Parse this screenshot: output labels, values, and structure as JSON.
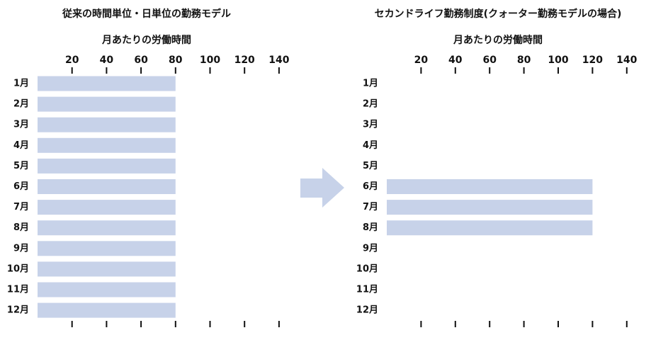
{
  "chart_data": [
    {
      "type": "bar",
      "orientation": "horizontal",
      "title": "従来の時間単位・日単位の勤務モデル",
      "subtitle": "月あたりの労働時間",
      "categories": [
        "1月",
        "2月",
        "3月",
        "4月",
        "5月",
        "6月",
        "7月",
        "8月",
        "9月",
        "10月",
        "11月",
        "12月"
      ],
      "values": [
        80,
        80,
        80,
        80,
        80,
        80,
        80,
        80,
        80,
        80,
        80,
        80
      ],
      "xlim": [
        0,
        140
      ],
      "xticks": [
        20,
        40,
        60,
        80,
        100,
        120,
        140
      ],
      "bar_color": "#c7d2e9"
    },
    {
      "type": "bar",
      "orientation": "horizontal",
      "title": "セカンドライフ勤務制度(クォーター勤務モデルの場合)",
      "subtitle": "月あたりの労働時間",
      "categories": [
        "1月",
        "2月",
        "3月",
        "4月",
        "5月",
        "6月",
        "7月",
        "8月",
        "9月",
        "10月",
        "11月",
        "12月"
      ],
      "values": [
        0,
        0,
        0,
        0,
        0,
        120,
        120,
        120,
        0,
        0,
        0,
        0
      ],
      "xlim": [
        0,
        140
      ],
      "xticks": [
        20,
        40,
        60,
        80,
        100,
        120,
        140
      ],
      "bar_color": "#c7d2e9"
    }
  ],
  "arrow_color": "#c7d2e9"
}
